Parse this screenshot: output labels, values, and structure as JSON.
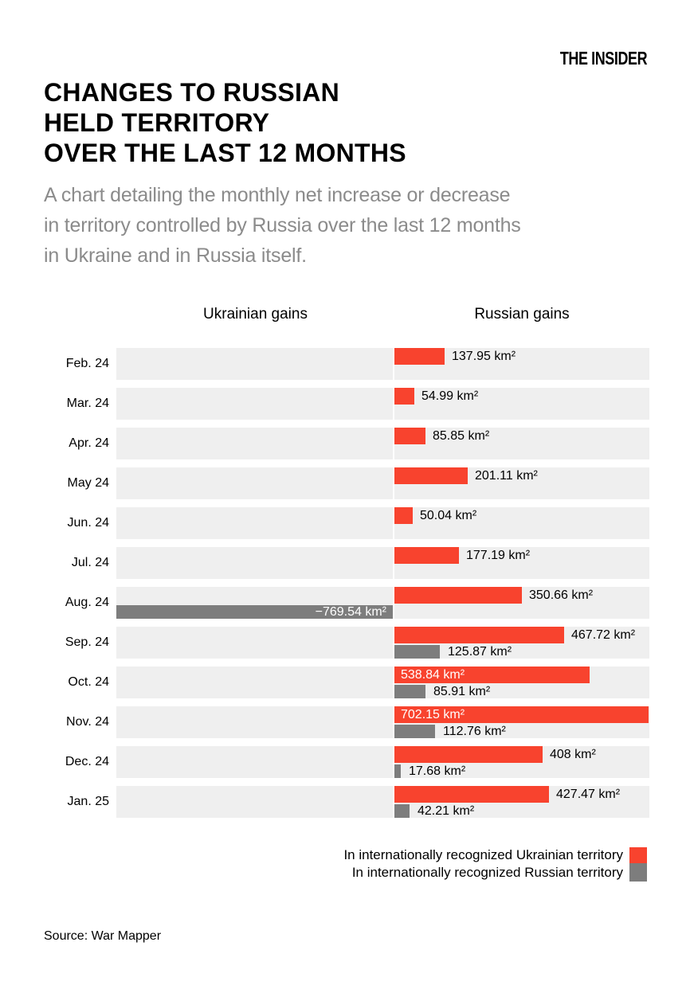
{
  "brand": {
    "logo": "THE INSIDER"
  },
  "header": {
    "title_lines": [
      "CHANGES TO RUSSIAN",
      "HELD TERRITORY",
      "OVER THE LAST 12 MONTHS"
    ],
    "subtitle_lines": [
      "A chart detailing the monthly net increase or decrease",
      "in territory controlled by Russia over the last 12 months",
      "in Ukraine and in Russia itself."
    ]
  },
  "chart_data": {
    "type": "bar",
    "orientation": "horizontal-diverging",
    "column_headers": {
      "left": "Ukrainian gains",
      "right": "Russian gains"
    },
    "unit": "km²",
    "categories": [
      "Feb. 24",
      "Mar. 24",
      "Apr. 24",
      "May 24",
      "Jun. 24",
      "Jul. 24",
      "Aug. 24",
      "Sep. 24",
      "Oct. 24",
      "Nov. 24",
      "Dec. 24",
      "Jan. 25"
    ],
    "series": [
      {
        "name": "In internationally recognized Ukrainian territory",
        "color": "#F8432E",
        "values": [
          137.95,
          54.99,
          85.85,
          201.11,
          50.04,
          177.19,
          350.66,
          467.72,
          538.84,
          702.15,
          408,
          427.47
        ],
        "labels": [
          "137.95 km²",
          "54.99 km²",
          "85.85 km²",
          "201.11 km²",
          "50.04 km²",
          "177.19 km²",
          "350.66 km²",
          "467.72 km²",
          "538.84 km²",
          "702.15 km²",
          "408 km²",
          "427.47 km²"
        ]
      },
      {
        "name": "In internationally recognized Russian territory",
        "color": "#7D7D7D",
        "values": [
          null,
          null,
          null,
          null,
          null,
          null,
          -769.54,
          125.87,
          85.91,
          112.76,
          17.68,
          42.21
        ],
        "labels": [
          null,
          null,
          null,
          null,
          null,
          null,
          "−769.54 km²",
          "125.87 km²",
          "85.91 km²",
          "112.76 km²",
          "17.68 km²",
          "42.21 km²"
        ]
      }
    ],
    "axis": {
      "zero_at_center": true,
      "x_min": -769.54,
      "x_max": 702.15,
      "gridlines": false
    },
    "row_background_color": "#EFEFEF",
    "legend_position": "bottom-right"
  },
  "source": {
    "text": "Source: War Mapper"
  }
}
